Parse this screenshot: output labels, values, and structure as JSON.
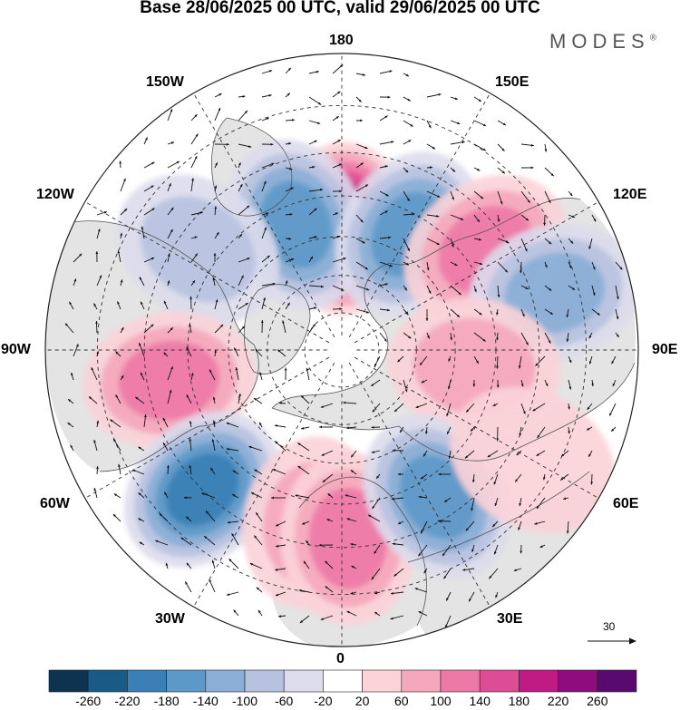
{
  "title": "Base 28/06/2025 00 UTC, valid 29/06/2025 00 UTC",
  "brand": "MODES",
  "brand_mark": "®",
  "longitude_labels": {
    "l180": "180",
    "l150E": "150E",
    "l120E": "120E",
    "l90E": "90E",
    "l60E": "60E",
    "l30E": "30E",
    "l0": "0",
    "l30W": "30W",
    "l60W": "60W",
    "l90W": "90W",
    "l120W": "120W",
    "l150W": "150W"
  },
  "vector_scale": {
    "value": "30"
  },
  "colorbar": {
    "labels": [
      "-260",
      "-220",
      "-180",
      "-140",
      "-100",
      "-60",
      "-20",
      "20",
      "60",
      "100",
      "140",
      "180",
      "220",
      "260"
    ],
    "colors": [
      "#0d3350",
      "#1a5a86",
      "#3a7fb5",
      "#5d99c8",
      "#8aaed6",
      "#b7c2e0",
      "#dcdcec",
      "#ffffff",
      "#fbd3d8",
      "#f5a7bb",
      "#ed79a6",
      "#df4c96",
      "#c01b85",
      "#8e0c7e",
      "#5a0a6e"
    ]
  },
  "map_colors": {
    "land": "#e4e4e4",
    "ocean": "#ffffff"
  },
  "anomalies": [
    {
      "lon": 179,
      "lat": 58,
      "value": 240
    },
    {
      "lon": -160,
      "lat": 55,
      "value": -160
    },
    {
      "lon": 150,
      "lat": 55,
      "value": -170
    },
    {
      "lon": 125,
      "lat": 45,
      "value": 110
    },
    {
      "lon": 105,
      "lat": 35,
      "value": -110
    },
    {
      "lon": 83,
      "lat": 55,
      "value": 100
    },
    {
      "lon": -125,
      "lat": 45,
      "value": -90
    },
    {
      "lon": -80,
      "lat": 45,
      "value": 110
    },
    {
      "lon": -45,
      "lat": 40,
      "value": -210
    },
    {
      "lon": -10,
      "lat": 45,
      "value": 80
    },
    {
      "lon": 2,
      "lat": 42,
      "value": 140
    },
    {
      "lon": 33,
      "lat": 45,
      "value": -180
    },
    {
      "lon": 60,
      "lat": 35,
      "value": 40
    }
  ]
}
